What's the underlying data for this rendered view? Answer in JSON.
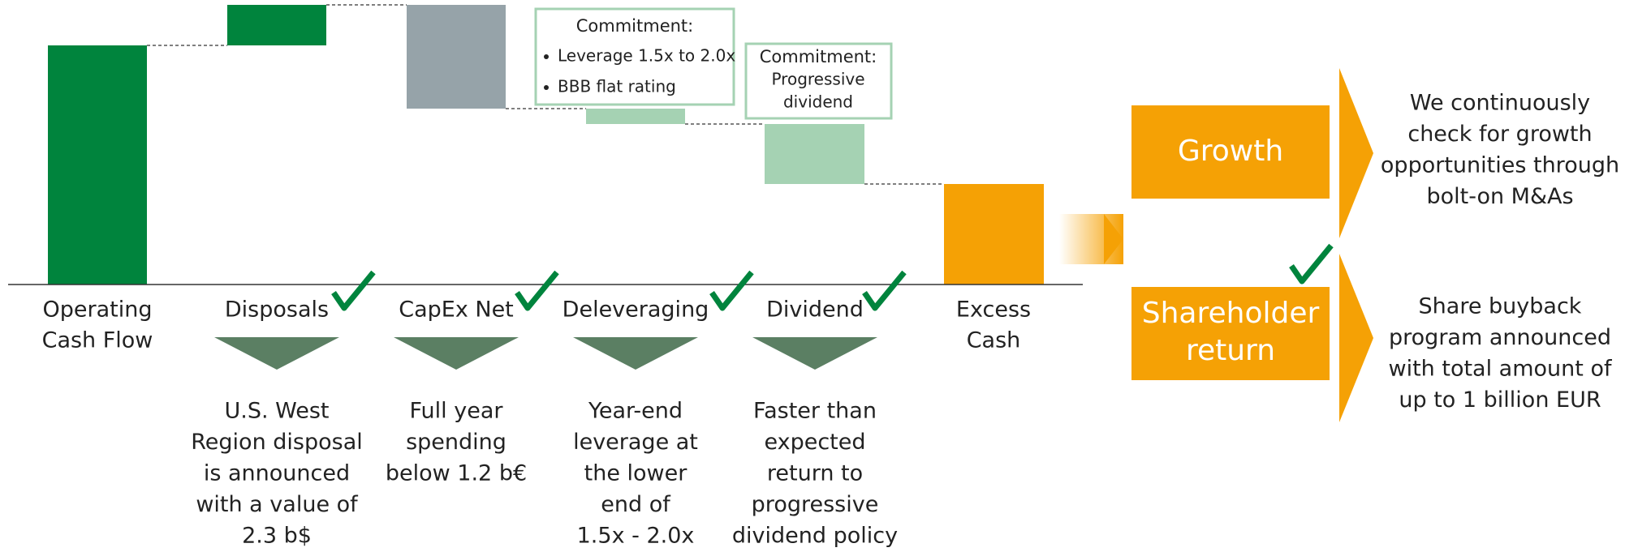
{
  "steps": [
    {
      "label": [
        "Operating",
        "Cash Flow"
      ]
    },
    {
      "label": [
        "Disposals"
      ],
      "detail": [
        "U.S. West",
        "Region disposal",
        "is announced",
        "with a value of",
        "2.3 b$"
      ]
    },
    {
      "label": [
        "CapEx Net"
      ],
      "detail": [
        "Full year",
        "spending",
        "below 1.2 b€"
      ]
    },
    {
      "label": [
        "Deleveraging"
      ],
      "detail": [
        "Year-end",
        "leverage at",
        "the lower",
        "end of",
        "1.5x - 2.0x"
      ]
    },
    {
      "label": [
        "Dividend"
      ],
      "detail": [
        "Faster than",
        "expected",
        "return to",
        "progressive",
        "dividend policy"
      ]
    },
    {
      "label": [
        "Excess",
        "Cash"
      ]
    }
  ],
  "commitments": [
    {
      "title": "Commitment:",
      "items": [
        "Leverage 1.5x to 2.0x",
        "BBB flat rating"
      ]
    },
    {
      "title": "Commitment:",
      "lines": [
        "Progressive",
        "dividend"
      ]
    }
  ],
  "outcomes": [
    {
      "label": [
        "Growth"
      ],
      "text": [
        "We continuously",
        "check for growth",
        "opportunities through",
        "bolt-on M&As"
      ]
    },
    {
      "label": [
        "Shareholder",
        "return"
      ],
      "text": [
        "Share buyback",
        "program announced",
        "with total amount of",
        "up to 1 billion EUR"
      ]
    }
  ]
}
